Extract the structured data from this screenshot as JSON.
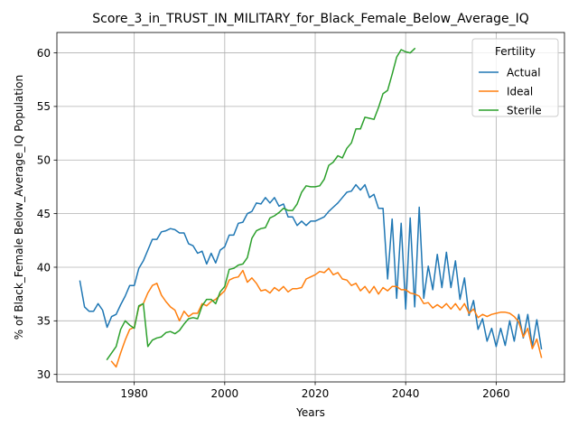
{
  "chart_data": {
    "type": "line",
    "title": "Score_3_in_TRUST_IN_MILITARY_for_Black_Female_Below_Average_IQ",
    "xlabel": "Years",
    "ylabel": "% of Black_Female Below_Average_IQ Population",
    "xlim": [
      1962.9,
      2075.1
    ],
    "ylim": [
      29.3,
      61.9
    ],
    "xticks": [
      1980,
      2000,
      2020,
      2040,
      2060
    ],
    "yticks": [
      30,
      35,
      40,
      45,
      50,
      55,
      60
    ],
    "grid": true,
    "legend": {
      "title": "Fertility",
      "position": "upper right"
    },
    "series": [
      {
        "name": "Actual",
        "color": "#1f77b4",
        "x": [
          1968,
          1969,
          1970,
          1971,
          1972,
          1973,
          1974,
          1975,
          1976,
          1977,
          1978,
          1979,
          1980,
          1981,
          1982,
          1983,
          1984,
          1985,
          1986,
          1987,
          1988,
          1989,
          1990,
          1991,
          1992,
          1993,
          1994,
          1995,
          1996,
          1997,
          1998,
          1999,
          2000,
          2001,
          2002,
          2003,
          2004,
          2005,
          2006,
          2007,
          2008,
          2009,
          2010,
          2011,
          2012,
          2013,
          2014,
          2015,
          2016,
          2017,
          2018,
          2019,
          2020,
          2021,
          2022,
          2023,
          2024,
          2025,
          2026,
          2027,
          2028,
          2029,
          2030,
          2031,
          2032,
          2033,
          2034,
          2035,
          2036,
          2037,
          2038,
          2039,
          2040,
          2041,
          2042,
          2043,
          2044,
          2045,
          2046,
          2047,
          2048,
          2049,
          2050,
          2051,
          2052,
          2053,
          2054,
          2055,
          2056,
          2057,
          2058,
          2059,
          2060,
          2061,
          2062,
          2063,
          2064,
          2065,
          2066,
          2067,
          2068,
          2069,
          2070
        ],
        "y": [
          38.7,
          36.3,
          35.9,
          35.9,
          36.6,
          36.0,
          34.4,
          35.4,
          35.6,
          36.5,
          37.3,
          38.3,
          38.3,
          39.9,
          40.6,
          41.6,
          42.6,
          42.6,
          43.3,
          43.4,
          43.6,
          43.5,
          43.2,
          43.2,
          42.2,
          42.0,
          41.3,
          41.5,
          40.3,
          41.3,
          40.4,
          41.6,
          41.9,
          43.0,
          43.0,
          44.1,
          44.2,
          45.0,
          45.2,
          46.0,
          45.9,
          46.5,
          46.0,
          46.5,
          45.7,
          45.9,
          44.7,
          44.7,
          43.9,
          44.3,
          43.9,
          44.3,
          44.3,
          44.5,
          44.7,
          45.2,
          45.6,
          46.0,
          46.5,
          47.0,
          47.1,
          47.7,
          47.2,
          47.7,
          46.5,
          46.8,
          45.5,
          45.5,
          38.9,
          44.5,
          37.1,
          44.1,
          36.1,
          44.6,
          36.3,
          45.6,
          37.1,
          40.1,
          37.9,
          41.2,
          38.1,
          41.4,
          38.1,
          40.6,
          37.0,
          39.0,
          35.5,
          36.9,
          34.2,
          35.2,
          33.1,
          34.3,
          32.6,
          34.3,
          32.7,
          35.0,
          33.1,
          35.6,
          33.4,
          35.6,
          32.6,
          35.1,
          32.4
        ]
      },
      {
        "name": "Ideal",
        "color": "#ff7f0e",
        "x": [
          1975,
          1976,
          1977,
          1978,
          1979,
          1980,
          1981,
          1982,
          1983,
          1984,
          1985,
          1986,
          1987,
          1988,
          1989,
          1990,
          1991,
          1992,
          1993,
          1994,
          1995,
          1996,
          1997,
          1998,
          1999,
          2000,
          2001,
          2002,
          2003,
          2004,
          2005,
          2006,
          2007,
          2008,
          2009,
          2010,
          2011,
          2012,
          2013,
          2014,
          2015,
          2016,
          2017,
          2018,
          2019,
          2020,
          2021,
          2022,
          2023,
          2024,
          2025,
          2026,
          2027,
          2028,
          2029,
          2030,
          2031,
          2032,
          2033,
          2034,
          2035,
          2036,
          2037,
          2038,
          2039,
          2040,
          2041,
          2042,
          2043,
          2044,
          2045,
          2046,
          2047,
          2048,
          2049,
          2050,
          2051,
          2052,
          2053,
          2054,
          2055,
          2056,
          2057,
          2058,
          2059,
          2060,
          2061,
          2062,
          2063,
          2064,
          2065,
          2066,
          2067,
          2068,
          2069,
          2070
        ],
        "y": [
          31.2,
          30.7,
          32.0,
          33.2,
          34.2,
          34.4,
          36.3,
          36.6,
          37.6,
          38.3,
          38.5,
          37.4,
          36.8,
          36.3,
          36.0,
          35.0,
          35.9,
          35.4,
          35.7,
          35.7,
          36.6,
          36.4,
          36.8,
          37.0,
          37.4,
          37.8,
          38.8,
          39.0,
          39.1,
          39.7,
          38.6,
          39.0,
          38.5,
          37.8,
          37.9,
          37.6,
          38.1,
          37.8,
          38.2,
          37.7,
          38.0,
          38.0,
          38.1,
          38.9,
          39.1,
          39.3,
          39.6,
          39.5,
          39.9,
          39.3,
          39.5,
          38.9,
          38.8,
          38.3,
          38.5,
          37.8,
          38.2,
          37.6,
          38.2,
          37.5,
          38.1,
          37.8,
          38.2,
          38.2,
          37.9,
          37.9,
          37.6,
          37.5,
          37.3,
          36.6,
          36.7,
          36.2,
          36.5,
          36.2,
          36.6,
          36.1,
          36.6,
          36.0,
          36.6,
          35.7,
          36.1,
          35.3,
          35.6,
          35.4,
          35.6,
          35.7,
          35.8,
          35.8,
          35.7,
          35.4,
          34.9,
          33.5,
          34.3,
          32.4,
          33.3,
          31.6
        ]
      },
      {
        "name": "Sterile",
        "color": "#2ca02c",
        "x": [
          1974,
          1975,
          1976,
          1977,
          1978,
          1979,
          1980,
          1981,
          1982,
          1983,
          1984,
          1985,
          1986,
          1987,
          1988,
          1989,
          1990,
          1991,
          1992,
          1993,
          1994,
          1995,
          1996,
          1997,
          1998,
          1999,
          2000,
          2001,
          2002,
          2003,
          2004,
          2005,
          2006,
          2007,
          2008,
          2009,
          2010,
          2011,
          2012,
          2013,
          2014,
          2015,
          2016,
          2017,
          2018,
          2019,
          2020,
          2021,
          2022,
          2023,
          2024,
          2025,
          2026,
          2027,
          2028,
          2029,
          2030,
          2031,
          2032,
          2033,
          2034,
          2035,
          2036,
          2037,
          2038,
          2039,
          2040,
          2041,
          2042
        ],
        "y": [
          31.4,
          32.0,
          32.6,
          34.2,
          35.0,
          34.6,
          34.3,
          36.4,
          36.6,
          32.6,
          33.2,
          33.4,
          33.5,
          33.9,
          34.0,
          33.8,
          34.1,
          34.7,
          35.2,
          35.3,
          35.2,
          36.4,
          37.0,
          37.0,
          36.6,
          37.7,
          38.2,
          39.8,
          39.9,
          40.2,
          40.3,
          40.9,
          42.7,
          43.4,
          43.6,
          43.7,
          44.6,
          44.8,
          45.1,
          45.5,
          45.3,
          45.3,
          45.9,
          47.0,
          47.6,
          47.5,
          47.5,
          47.6,
          48.2,
          49.5,
          49.8,
          50.4,
          50.2,
          51.1,
          51.6,
          52.9,
          52.9,
          54.0,
          53.9,
          53.8,
          54.9,
          56.2,
          56.5,
          58.0,
          59.6,
          60.3,
          60.1,
          60.0,
          60.4
        ]
      }
    ]
  }
}
